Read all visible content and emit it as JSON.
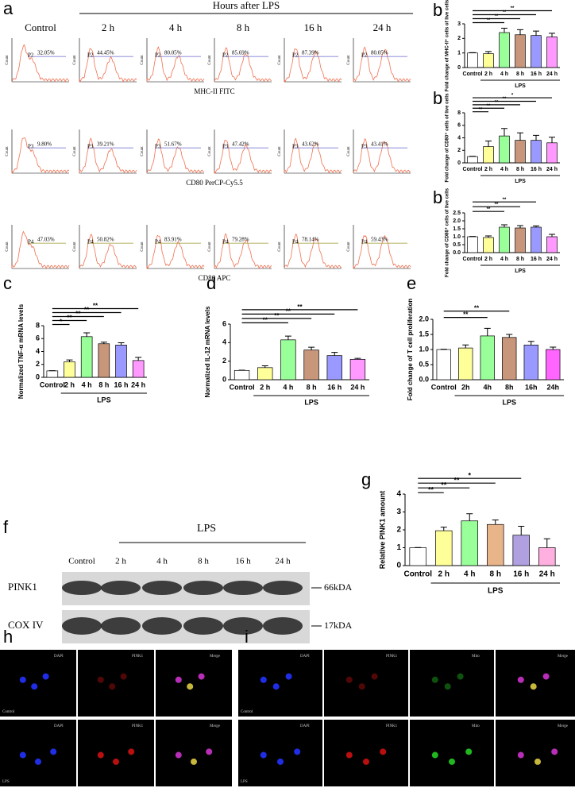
{
  "flow": {
    "panel": "a",
    "header": "Hours after LPS",
    "columns": [
      "Control",
      "2 h",
      "4 h",
      "8 h",
      "16 h",
      "24 h"
    ],
    "y_label": "Count",
    "rows": [
      {
        "gate": "P2",
        "axis_label": "MHC-II FITC",
        "percents": [
          "32.05%",
          "44.45%",
          "80.05%",
          "85.69%",
          "87.39%",
          "80.05%"
        ]
      },
      {
        "gate": "P3",
        "axis_label": "CD80 PerCP-Cy5.5",
        "percents": [
          "9.80%",
          "39.21%",
          "51.67%",
          "47.42%",
          "43.62%",
          "43.41%"
        ]
      },
      {
        "gate": "P4",
        "axis_label": "CD86 APC",
        "percents": [
          "47.03%",
          "50.82%",
          "83.91%",
          "79.28%",
          "78.14%",
          "59.43%"
        ]
      }
    ]
  },
  "chart_data": [
    {
      "type": "bar",
      "panel": "b",
      "y_label": "Fold change of MHC-II⁺ cells of live cells",
      "categories": [
        "Control",
        "2 h",
        "4 h",
        "8 h",
        "16 h",
        "24 h"
      ],
      "group_label": "LPS",
      "values": [
        1,
        0.95,
        2.4,
        2.25,
        2.2,
        2.1
      ],
      "errors": [
        0.02,
        0.15,
        0.3,
        0.35,
        0.3,
        0.25
      ],
      "colors": [
        "#ffffff",
        "#ffff99",
        "#99ff99",
        "#c8967a",
        "#9999ff",
        "#ff99ff"
      ],
      "ylim": [
        0,
        3
      ],
      "yticks": [
        0,
        1,
        2,
        3
      ],
      "significance": [
        {
          "label": "**",
          "to": 5
        },
        {
          "label": "**",
          "to": 4
        },
        {
          "label": "**",
          "to": 3
        },
        {
          "label": "**",
          "to": 2
        }
      ]
    },
    {
      "type": "bar",
      "panel": "b",
      "y_label": "Fold change of CD80⁺ cells of live cells",
      "categories": [
        "Control",
        "2 h",
        "4 h",
        "8 h",
        "16 h",
        "24 h"
      ],
      "group_label": "LPS",
      "values": [
        1,
        2.6,
        4.3,
        3.6,
        3.6,
        3.2
      ],
      "errors": [
        0.05,
        0.9,
        1.2,
        1.2,
        0.8,
        0.9
      ],
      "colors": [
        "#ffffff",
        "#ffff99",
        "#99ff99",
        "#c8967a",
        "#9999ff",
        "#ff99ff"
      ],
      "ylim": [
        0,
        8
      ],
      "yticks": [
        0,
        2,
        4,
        6,
        8
      ],
      "significance": [
        {
          "label": "*",
          "to": 5
        },
        {
          "label": "**",
          "to": 4
        },
        {
          "label": "**",
          "to": 3
        },
        {
          "label": "**",
          "to": 2
        },
        {
          "label": "**",
          "to": 1
        }
      ]
    },
    {
      "type": "bar",
      "panel": "b",
      "y_label": "Fold change of CD86⁺ cells of live cells",
      "categories": [
        "Control",
        "2 h",
        "4 h",
        "8 h",
        "16 h",
        "24 h"
      ],
      "group_label": "LPS",
      "values": [
        1,
        0.95,
        1.6,
        1.55,
        1.6,
        1.0
      ],
      "errors": [
        0.02,
        0.1,
        0.15,
        0.15,
        0.08,
        0.15
      ],
      "colors": [
        "#ffffff",
        "#ffff99",
        "#99ff99",
        "#c8967a",
        "#9999ff",
        "#ff99ff"
      ],
      "ylim": [
        0,
        2.5
      ],
      "yticks": [
        {
          "value": 0,
          "label": "0.0"
        },
        {
          "value": 0.5,
          "label": "0.5"
        },
        {
          "value": 1,
          "label": "1.0"
        },
        {
          "value": 1.5,
          "label": "1.5"
        },
        {
          "value": 2,
          "label": "2.0"
        },
        {
          "value": 2.5,
          "label": "2.5"
        }
      ],
      "significance": [
        {
          "label": "**",
          "to": 4
        },
        {
          "label": "**",
          "to": 3
        },
        {
          "label": "**",
          "to": 2
        }
      ]
    },
    {
      "type": "bar",
      "panel": "c",
      "y_label": "Normalized TNF-α mRNA levels",
      "categories": [
        "Control",
        "2 h",
        "4 h",
        "8 h",
        "16 h",
        "24 h"
      ],
      "group_label": "LPS",
      "values": [
        1,
        2.4,
        6.3,
        5.2,
        5.0,
        2.6
      ],
      "errors": [
        0.03,
        0.3,
        0.6,
        0.25,
        0.35,
        0.5
      ],
      "colors": [
        "#ffffff",
        "#ffff99",
        "#99ff99",
        "#c8967a",
        "#9999ff",
        "#ff99ff"
      ],
      "ylim": [
        0,
        8
      ],
      "yticks": [
        0,
        2,
        4,
        6,
        8
      ],
      "significance": [
        {
          "label": "**",
          "to": 5
        },
        {
          "label": "**",
          "to": 4
        },
        {
          "label": "**",
          "to": 3
        },
        {
          "label": "**",
          "to": 2
        },
        {
          "label": "*",
          "to": 1
        }
      ]
    },
    {
      "type": "bar",
      "panel": "d",
      "y_label": "Normalized IL-12 mRNA levels",
      "categories": [
        "Control",
        "2 h",
        "4 h",
        "8 h",
        "16 h",
        "24 h"
      ],
      "group_label": "LPS",
      "values": [
        1,
        1.3,
        4.3,
        3.2,
        2.6,
        2.2
      ],
      "errors": [
        0.03,
        0.2,
        0.4,
        0.3,
        0.35,
        0.1
      ],
      "colors": [
        "#ffffff",
        "#ffff99",
        "#99ff99",
        "#c8967a",
        "#9999ff",
        "#ff99ff"
      ],
      "ylim": [
        0,
        6
      ],
      "yticks": [
        0,
        2,
        4,
        6
      ],
      "significance": [
        {
          "label": "**",
          "to": 5
        },
        {
          "label": "**",
          "to": 4
        },
        {
          "label": "**",
          "to": 3
        },
        {
          "label": "**",
          "to": 2
        }
      ]
    },
    {
      "type": "bar",
      "panel": "e",
      "y_label": "Fold change of T cell proliferation",
      "categories": [
        "Control",
        "2h",
        "4h",
        "8h",
        "16h",
        "24h"
      ],
      "group_label": "LPS",
      "values": [
        1,
        1.05,
        1.45,
        1.4,
        1.15,
        1.0
      ],
      "errors": [
        0.01,
        0.1,
        0.25,
        0.1,
        0.12,
        0.08
      ],
      "colors": [
        "#ffffff",
        "#ffff99",
        "#99ff99",
        "#c8967a",
        "#9999ff",
        "#ff66ff"
      ],
      "ylim": [
        0,
        2
      ],
      "yticks": [
        {
          "value": 0,
          "label": "0.0"
        },
        {
          "value": 0.5,
          "label": "0.5"
        },
        {
          "value": 1,
          "label": "1.0"
        },
        {
          "value": 1.5,
          "label": "1.5"
        },
        {
          "value": 2,
          "label": "2.0"
        }
      ],
      "significance": [
        {
          "label": "**",
          "to": 3
        },
        {
          "label": "**",
          "to": 2
        }
      ]
    },
    {
      "type": "bar",
      "panel": "g",
      "y_label": "Relative PINK1 amount",
      "categories": [
        "Control",
        "2 h",
        "4 h",
        "8 h",
        "16 h",
        "24 h"
      ],
      "group_label": "LPS",
      "values": [
        1,
        1.95,
        2.5,
        2.3,
        1.7,
        1.0
      ],
      "errors": [
        0.01,
        0.2,
        0.4,
        0.25,
        0.5,
        0.5
      ],
      "colors": [
        "#ffffff",
        "#ffff99",
        "#99ff99",
        "#e8b48a",
        "#b0a0e0",
        "#ffb0e0"
      ],
      "ylim": [
        0,
        4
      ],
      "yticks": [
        0,
        1,
        2,
        3,
        4
      ],
      "significance": [
        {
          "label": "*",
          "to": 4
        },
        {
          "label": "**",
          "to": 3
        },
        {
          "label": "**",
          "to": 2
        },
        {
          "label": "**",
          "to": 1
        }
      ]
    }
  ],
  "blot": {
    "panel": "f",
    "group": "LPS",
    "lanes": [
      "Control",
      "2 h",
      "4 h",
      "8 h",
      "16 h",
      "24 h"
    ],
    "bands": [
      {
        "name": "PINK1",
        "size": "66kDA"
      },
      {
        "name": "COX IV",
        "size": "17kDA"
      }
    ]
  },
  "microscopy": [
    {
      "panel": "h",
      "channels": [
        "DAPI",
        "PINK1",
        "Merge"
      ],
      "conditions": [
        "Control",
        "LPS"
      ]
    },
    {
      "panel": "i",
      "channels": [
        "DAPI",
        "PINK1",
        "Mito",
        "Merge"
      ],
      "conditions": [
        "Control",
        "LPS"
      ]
    }
  ]
}
